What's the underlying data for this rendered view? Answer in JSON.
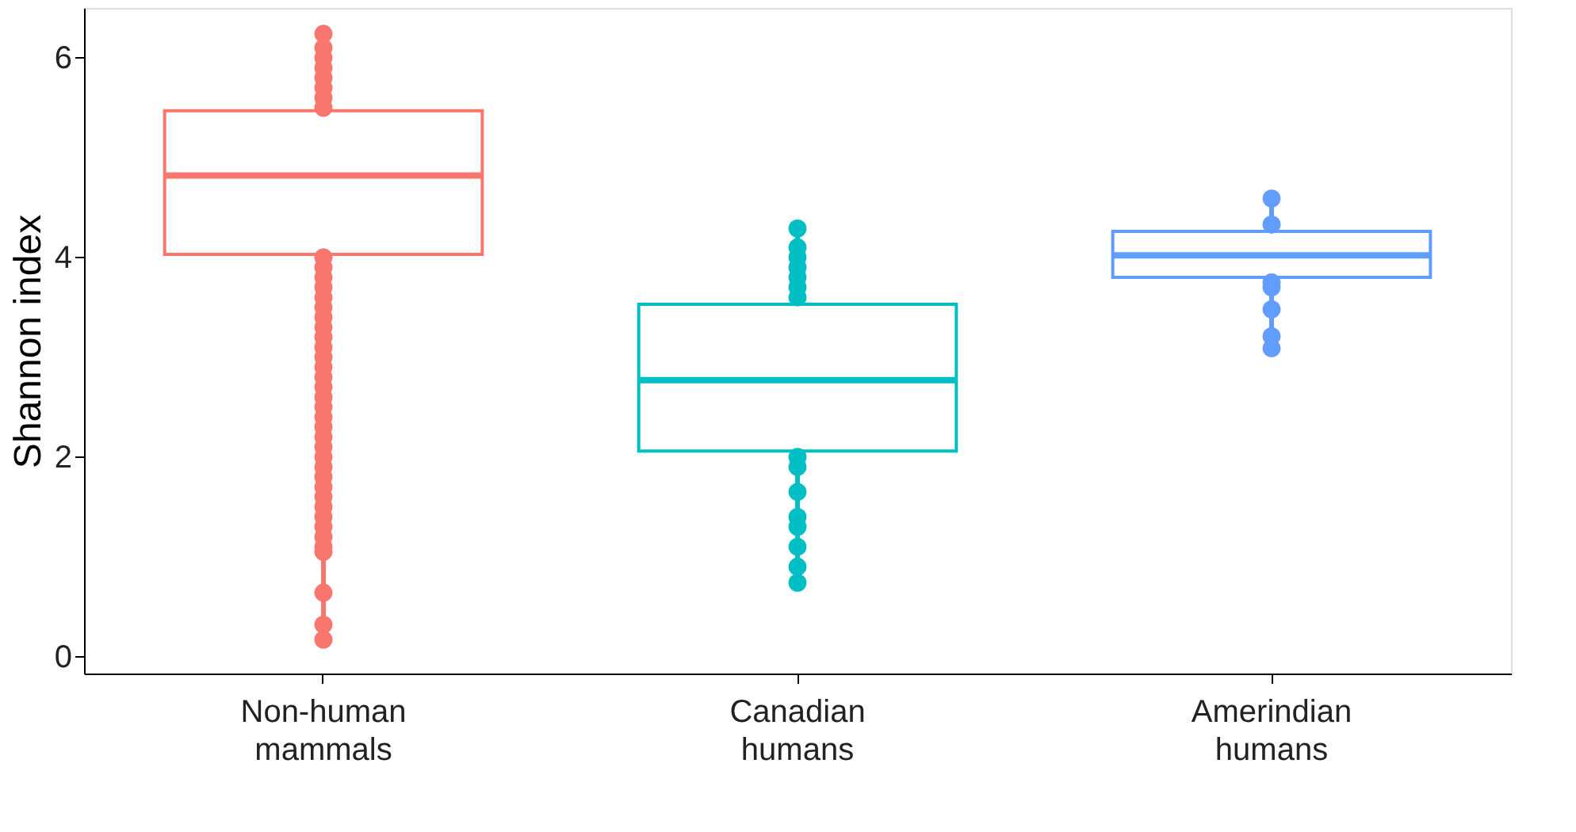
{
  "chart_data": {
    "type": "box",
    "ylabel": "Shannon index",
    "categories": [
      "Non-human mammals",
      "Canadian humans",
      "Amerindian humans"
    ],
    "colors": [
      "#f8766d",
      "#00bfc4",
      "#619cff"
    ],
    "boxes": [
      {
        "low": 0.17,
        "q1": 4.03,
        "median": 4.82,
        "q3": 5.47,
        "high": 6.24,
        "outliers": [
          6.24,
          6.1,
          6.0,
          5.9,
          5.8,
          5.7,
          5.6,
          5.5,
          4.0,
          3.9,
          3.8,
          3.7,
          3.6,
          3.5,
          3.4,
          3.3,
          3.2,
          3.1,
          3.0,
          2.9,
          2.8,
          2.7,
          2.6,
          2.5,
          2.4,
          2.3,
          2.2,
          2.1,
          2.0,
          1.9,
          1.8,
          1.7,
          1.6,
          1.5,
          1.4,
          1.3,
          1.2,
          1.1,
          1.05,
          0.64,
          0.32,
          0.17
        ]
      },
      {
        "low": 0.74,
        "q1": 2.06,
        "median": 2.77,
        "q3": 3.53,
        "high": 4.29,
        "outliers": [
          4.29,
          4.1,
          4.0,
          3.9,
          3.8,
          3.7,
          3.6,
          2.0,
          1.9,
          1.65,
          1.4,
          1.3,
          1.1,
          0.9,
          0.74
        ]
      },
      {
        "low": 3.09,
        "q1": 3.8,
        "median": 4.02,
        "q3": 4.26,
        "high": 4.59,
        "outliers": [
          4.59,
          4.33,
          3.75,
          3.7,
          3.48,
          3.21,
          3.09
        ]
      }
    ],
    "ylim": [
      -0.17,
      6.5
    ],
    "yticks": [
      0,
      2,
      4,
      6
    ],
    "grid": false,
    "legend": false,
    "marker": "circle"
  }
}
